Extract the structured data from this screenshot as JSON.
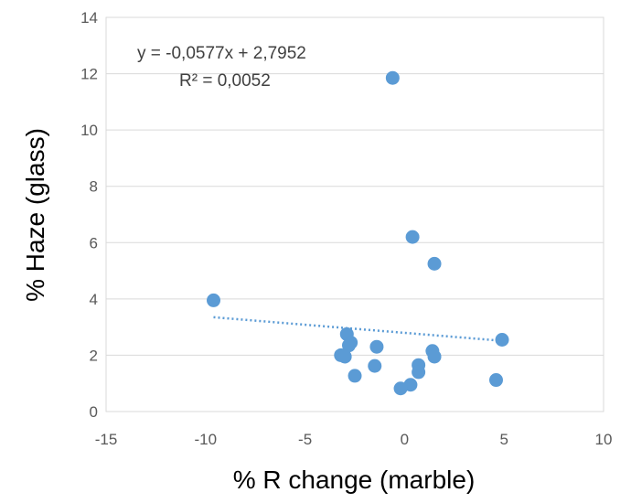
{
  "chart_data": {
    "type": "scatter",
    "title": "",
    "xlabel": "% R change (marble)",
    "ylabel": "% Haze (glass)",
    "xlim": [
      -15,
      10
    ],
    "ylim": [
      0,
      14
    ],
    "xticks": [
      -15,
      -10,
      -5,
      0,
      5,
      10
    ],
    "yticks": [
      0,
      2,
      4,
      6,
      8,
      10,
      12,
      14
    ],
    "grid": "horizontal",
    "legend": "none",
    "marker_color": "#5b9bd5",
    "trendline_color": "#5b9bd5",
    "points": [
      {
        "x": -9.6,
        "y": 3.95
      },
      {
        "x": -0.6,
        "y": 11.85
      },
      {
        "x": 0.4,
        "y": 6.2
      },
      {
        "x": 1.5,
        "y": 5.25
      },
      {
        "x": 4.9,
        "y": 2.55
      },
      {
        "x": -2.9,
        "y": 2.75
      },
      {
        "x": -2.7,
        "y": 2.45
      },
      {
        "x": -2.8,
        "y": 2.35
      },
      {
        "x": -3.2,
        "y": 2.0
      },
      {
        "x": -3.0,
        "y": 1.95
      },
      {
        "x": -1.4,
        "y": 2.3
      },
      {
        "x": -1.5,
        "y": 1.62
      },
      {
        "x": -2.5,
        "y": 1.27
      },
      {
        "x": 0.7,
        "y": 1.65
      },
      {
        "x": 0.7,
        "y": 1.4
      },
      {
        "x": 1.4,
        "y": 2.15
      },
      {
        "x": 1.5,
        "y": 1.95
      },
      {
        "x": 0.3,
        "y": 0.95
      },
      {
        "x": -0.2,
        "y": 0.82
      },
      {
        "x": 4.6,
        "y": 1.12
      }
    ],
    "trendline": {
      "type": "linear",
      "slope": -0.0577,
      "intercept": 2.7952,
      "x_range": [
        -9.6,
        4.9
      ],
      "equation": "y = -0,0577x + 2,7952",
      "r_squared": "R² = 0,0052"
    }
  }
}
